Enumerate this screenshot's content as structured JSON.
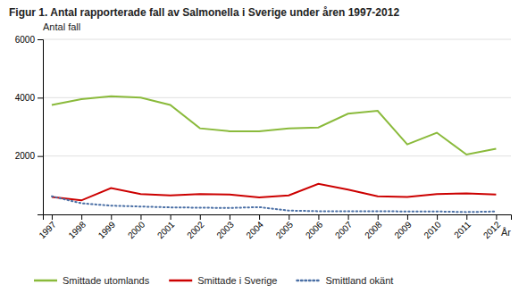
{
  "chart_data": {
    "type": "line",
    "title": "Figur 1. Antal rapporterade fall av Salmonella i Sverige under åren 1997-2012",
    "x_label": "År",
    "y_label": "Antal fall",
    "x": [
      1997,
      1998,
      1999,
      2000,
      2001,
      2002,
      2003,
      2004,
      2005,
      2006,
      2007,
      2008,
      2009,
      2010,
      2011,
      2012
    ],
    "series": [
      {
        "name": "Smittade utomlands",
        "color": "#8aba3b",
        "line_style": "solid",
        "values": [
          3750,
          3950,
          4050,
          4000,
          3750,
          2950,
          2850,
          2850,
          2950,
          2980,
          3450,
          3550,
          2400,
          2800,
          2050,
          2250
        ]
      },
      {
        "name": "Smittade i Sverige",
        "color": "#cc0000",
        "line_style": "solid",
        "values": [
          600,
          480,
          900,
          700,
          650,
          700,
          680,
          580,
          650,
          1050,
          850,
          620,
          600,
          700,
          720,
          680
        ]
      },
      {
        "name": "Smittland okänt",
        "color": "#4a6fa5",
        "line_style": "dotted",
        "values": [
          620,
          380,
          300,
          270,
          240,
          230,
          220,
          250,
          130,
          110,
          110,
          110,
          100,
          100,
          80,
          100
        ]
      }
    ],
    "xlim": [
      1996.7,
      2012.5
    ],
    "xticks": [
      1997,
      1998,
      1999,
      2000,
      2001,
      2002,
      2003,
      2004,
      2005,
      2006,
      2007,
      2008,
      2009,
      2010,
      2011,
      2012
    ],
    "ylim": [
      0,
      6000
    ],
    "yticks": [
      2000,
      4000,
      6000
    ],
    "grid": true,
    "legend": "bottom"
  }
}
